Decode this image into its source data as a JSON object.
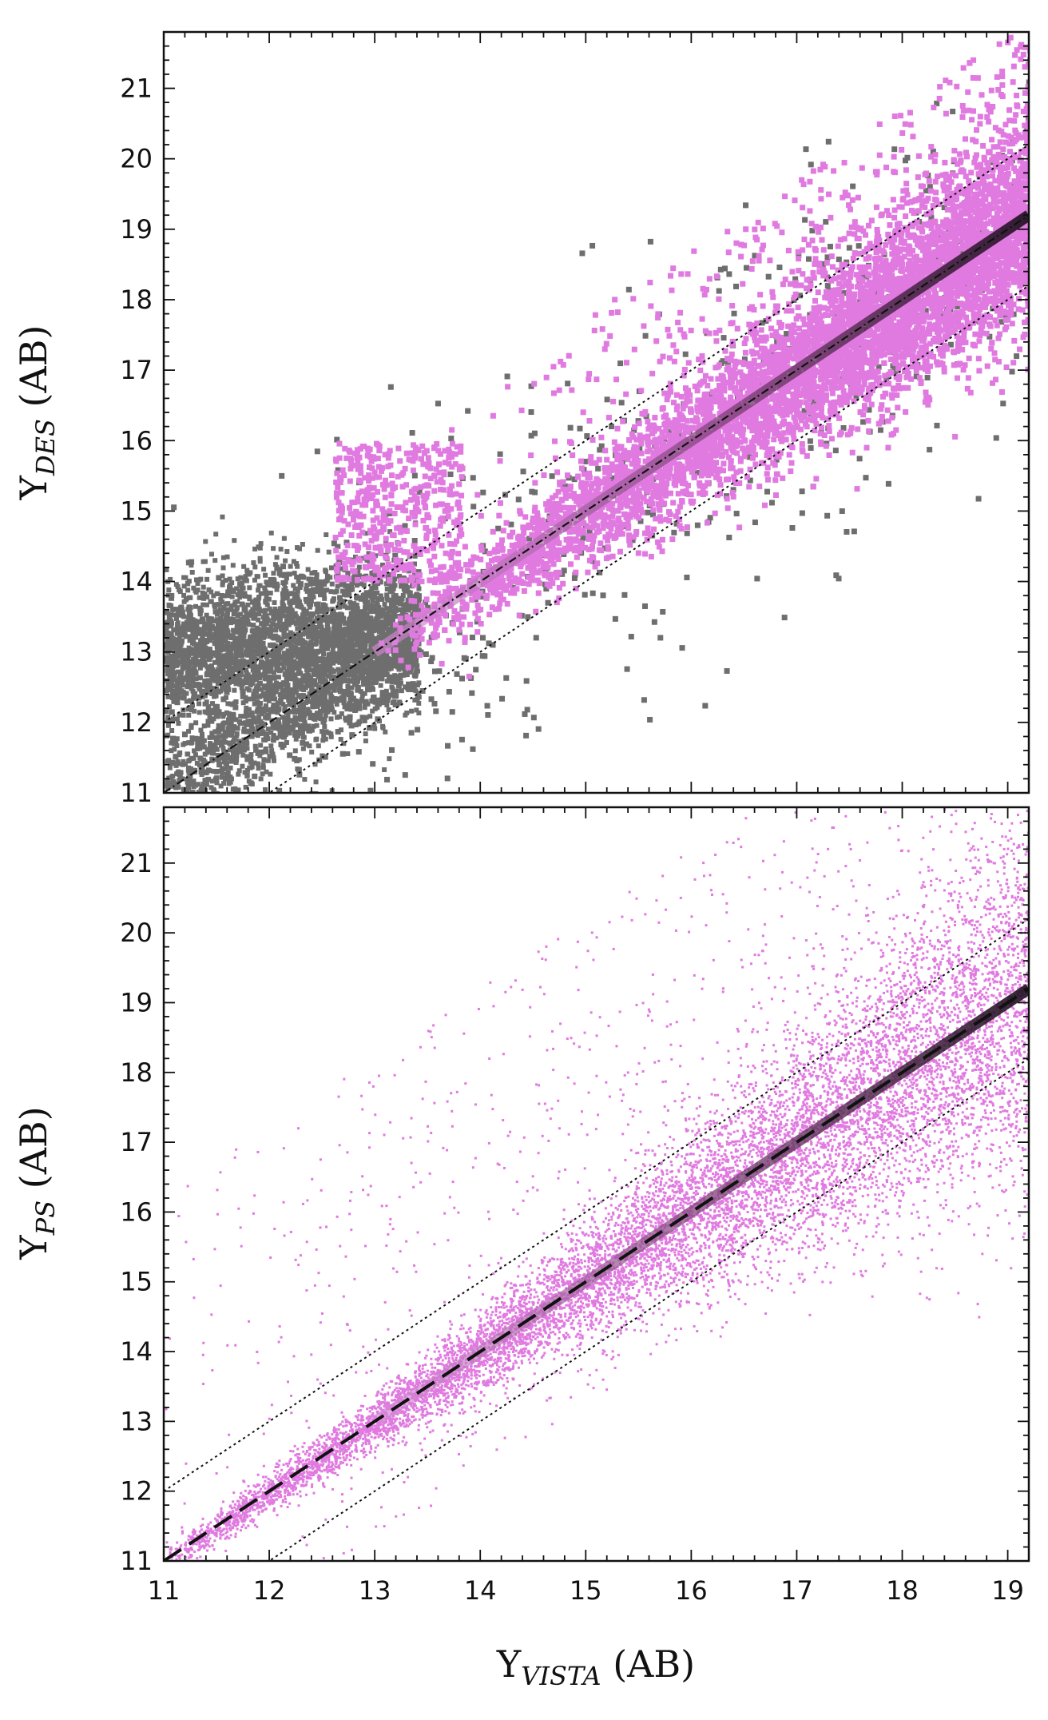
{
  "chart_data": [
    {
      "type": "scatter",
      "panel": "top",
      "title": "",
      "xlabel": "",
      "ylabel": {
        "main": "Y",
        "sub": "DES",
        "unit": " (AB)"
      },
      "xlim": [
        11,
        19.2
      ],
      "ylim": [
        11,
        21.8
      ],
      "y_ticks": [
        11,
        12,
        13,
        14,
        15,
        16,
        17,
        18,
        19,
        20,
        21
      ],
      "series": [
        {
          "color": "#6e6e6e",
          "description_points": "grey density population, dense clump at x 11–13.3, y 12–14.5"
        },
        {
          "color": "#e07ae0",
          "description_points": "pink density population, x 13–19.2"
        }
      ],
      "lines": [
        {
          "style": "dash-dot",
          "slope": 1,
          "intercept": 0
        },
        {
          "style": "dotted",
          "slope": 1,
          "intercept": 1
        },
        {
          "style": "dotted",
          "slope": 1,
          "intercept": -1
        }
      ],
      "grid": false,
      "legend": "none",
      "colors": {
        "grey": "#6e6e6e",
        "pink": "#e07ae0",
        "core": "#2a1a2a"
      }
    },
    {
      "type": "scatter",
      "panel": "bottom",
      "title": "",
      "xlabel": {
        "main": "Y",
        "sub": "VISTA",
        "unit": " (AB)"
      },
      "ylabel": {
        "main": "Y",
        "sub": "PS",
        "unit": " (AB)"
      },
      "xlim": [
        11,
        19.2
      ],
      "ylim": [
        11,
        21.8
      ],
      "x_ticks": [
        11,
        12,
        13,
        14,
        15,
        16,
        17,
        18,
        19
      ],
      "y_ticks": [
        11,
        12,
        13,
        14,
        15,
        16,
        17,
        18,
        19,
        20,
        21
      ],
      "series": [
        {
          "color": "#e07ae0",
          "description_points": "pink density population along y = x"
        }
      ],
      "lines": [
        {
          "style": "dashed",
          "slope": 1,
          "intercept": 0
        },
        {
          "style": "dotted",
          "slope": 1,
          "intercept": 1
        },
        {
          "style": "dotted",
          "slope": 1,
          "intercept": -1
        }
      ],
      "grid": false,
      "legend": "none",
      "colors": {
        "pink": "#e07ae0",
        "core": "#2a1a2a"
      }
    }
  ]
}
